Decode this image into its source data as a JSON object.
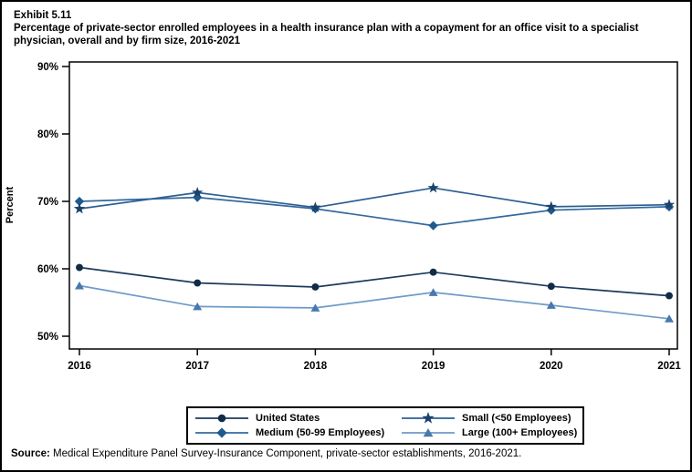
{
  "page": {
    "exhibit_label": "Exhibit 5.11",
    "title": "Percentage of private-sector enrolled employees in a health insurance plan with a copayment for an office visit to a specialist physician, overall and by firm size, 2016-2021",
    "source_label": "Source:",
    "source_text": "Medical Expenditure Panel Survey-Insurance Component, private-sector establishments, 2016-2021."
  },
  "chart_data": {
    "type": "line",
    "title": "Percentage of private-sector enrolled employees in a health insurance plan with a copayment for an office visit to a specialist physician, overall and by firm size, 2016-2021",
    "xlabel": "",
    "ylabel": "Percent",
    "x": [
      2016,
      2017,
      2018,
      2019,
      2020,
      2021
    ],
    "ylim": [
      48,
      91
    ],
    "yticks": [
      50,
      60,
      70,
      80,
      90
    ],
    "ytick_labels": [
      "50%",
      "60%",
      "70%",
      "80%",
      "90%"
    ],
    "grid": false,
    "legend_position": "bottom",
    "series": [
      {
        "name": "United States",
        "marker": "circle",
        "line_color": "#1B3A5C",
        "marker_color": "#122B45",
        "values": [
          60.2,
          57.9,
          57.3,
          59.5,
          57.4,
          56.0
        ]
      },
      {
        "name": "Small (<50 Employees)",
        "marker": "star",
        "line_color": "#2C5F93",
        "marker_color": "#1A416B",
        "values": [
          68.9,
          71.3,
          69.1,
          72.0,
          69.2,
          69.5
        ]
      },
      {
        "name": "Medium (50-99 Employees)",
        "marker": "diamond",
        "line_color": "#34699E",
        "marker_color": "#1F5A8C",
        "values": [
          70.0,
          70.6,
          68.9,
          66.4,
          68.7,
          69.2
        ]
      },
      {
        "name": "Large (100+ Employees)",
        "marker": "triangle",
        "line_color": "#6F9AC8",
        "marker_color": "#4878AE",
        "values": [
          57.5,
          54.4,
          54.2,
          56.5,
          54.6,
          52.6
        ]
      }
    ]
  }
}
